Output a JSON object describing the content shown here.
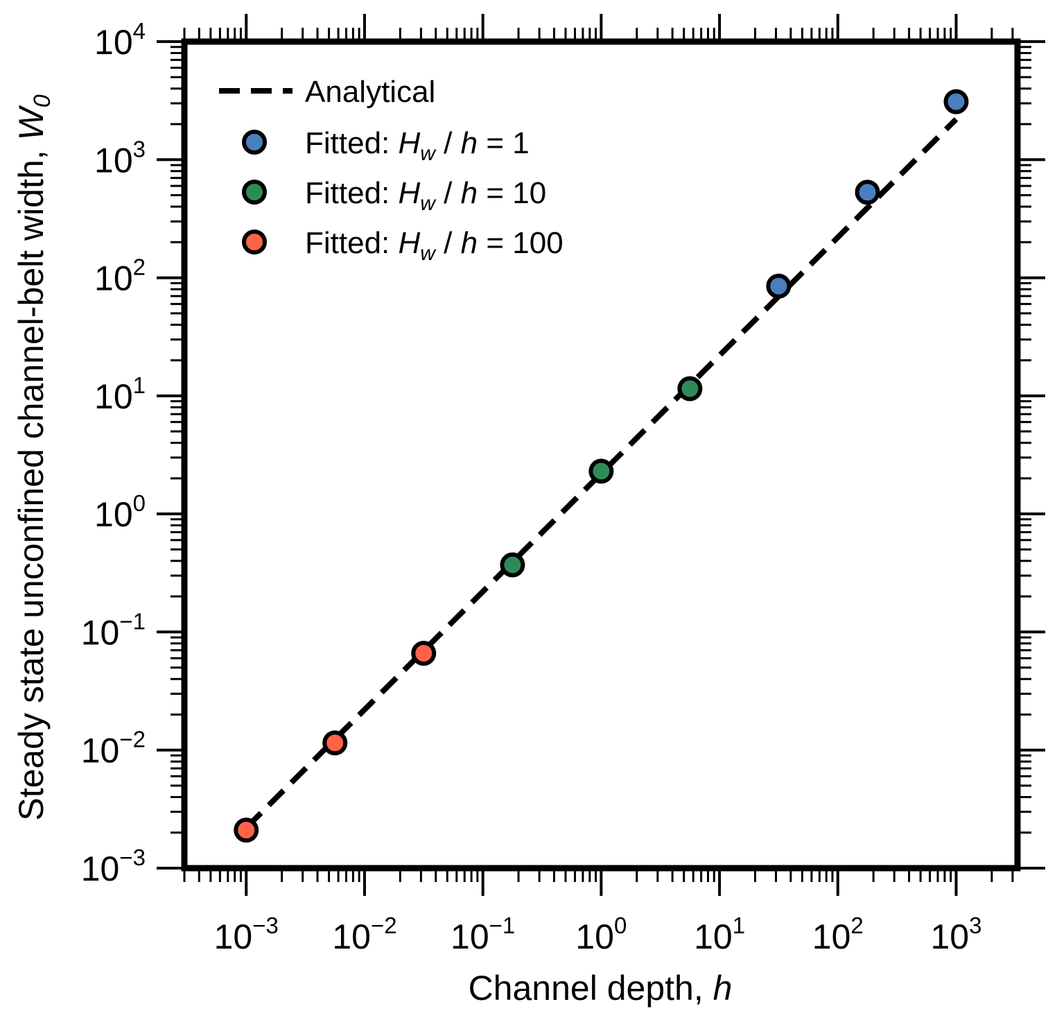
{
  "chart_data": {
    "type": "scatter",
    "xscale": "log",
    "yscale": "log",
    "xlabel": {
      "text": "Channel depth, ",
      "var": "h"
    },
    "ylabel": {
      "text": "Steady state unconfined channel-belt width, ",
      "var": "W",
      "sub": "0"
    },
    "xlim": [
      0.0003,
      3300
    ],
    "ylim": [
      0.001,
      10000
    ],
    "x_ticks": [
      {
        "base": "10",
        "exp": "−3",
        "value": 0.001
      },
      {
        "base": "10",
        "exp": "−2",
        "value": 0.01
      },
      {
        "base": "10",
        "exp": "−1",
        "value": 0.1
      },
      {
        "base": "10",
        "exp": "0",
        "value": 1
      },
      {
        "base": "10",
        "exp": "1",
        "value": 10
      },
      {
        "base": "10",
        "exp": "2",
        "value": 100
      },
      {
        "base": "10",
        "exp": "3",
        "value": 1000
      }
    ],
    "y_ticks": [
      {
        "base": "10",
        "exp": "−3",
        "value": 0.001
      },
      {
        "base": "10",
        "exp": "−2",
        "value": 0.01
      },
      {
        "base": "10",
        "exp": "−1",
        "value": 0.1
      },
      {
        "base": "10",
        "exp": "0",
        "value": 1
      },
      {
        "base": "10",
        "exp": "1",
        "value": 10
      },
      {
        "base": "10",
        "exp": "2",
        "value": 100
      },
      {
        "base": "10",
        "exp": "3",
        "value": 1000
      },
      {
        "base": "10",
        "exp": "4",
        "value": 10000
      }
    ],
    "grid": false,
    "legend_position": "top-left",
    "line": {
      "name": "Analytical",
      "style": "dashed",
      "color": "#000000",
      "x": [
        0.001,
        1000
      ],
      "y": [
        0.0022,
        2200
      ]
    },
    "series": [
      {
        "name_prefix": "Fitted: ",
        "name_var": "H",
        "name_sub": "w",
        "name_mid": " / ",
        "name_var2": "h",
        "name_suffix": " = 1",
        "color": "#4a7fbd",
        "x": [
          31.6,
          178,
          1000
        ],
        "y": [
          85,
          530,
          3100
        ]
      },
      {
        "name_prefix": "Fitted: ",
        "name_var": "H",
        "name_sub": "w",
        "name_mid": " / ",
        "name_var2": "h",
        "name_suffix": " = 10",
        "color": "#2e8b57",
        "x": [
          0.178,
          1.0,
          5.62
        ],
        "y": [
          0.37,
          2.3,
          11.5
        ]
      },
      {
        "name_prefix": "Fitted: ",
        "name_var": "H",
        "name_sub": "w",
        "name_mid": " / ",
        "name_var2": "h",
        "name_suffix": " = 100",
        "color": "#ff6347",
        "x": [
          0.001,
          0.00562,
          0.0316
        ],
        "y": [
          0.0021,
          0.0115,
          0.066
        ]
      }
    ]
  }
}
